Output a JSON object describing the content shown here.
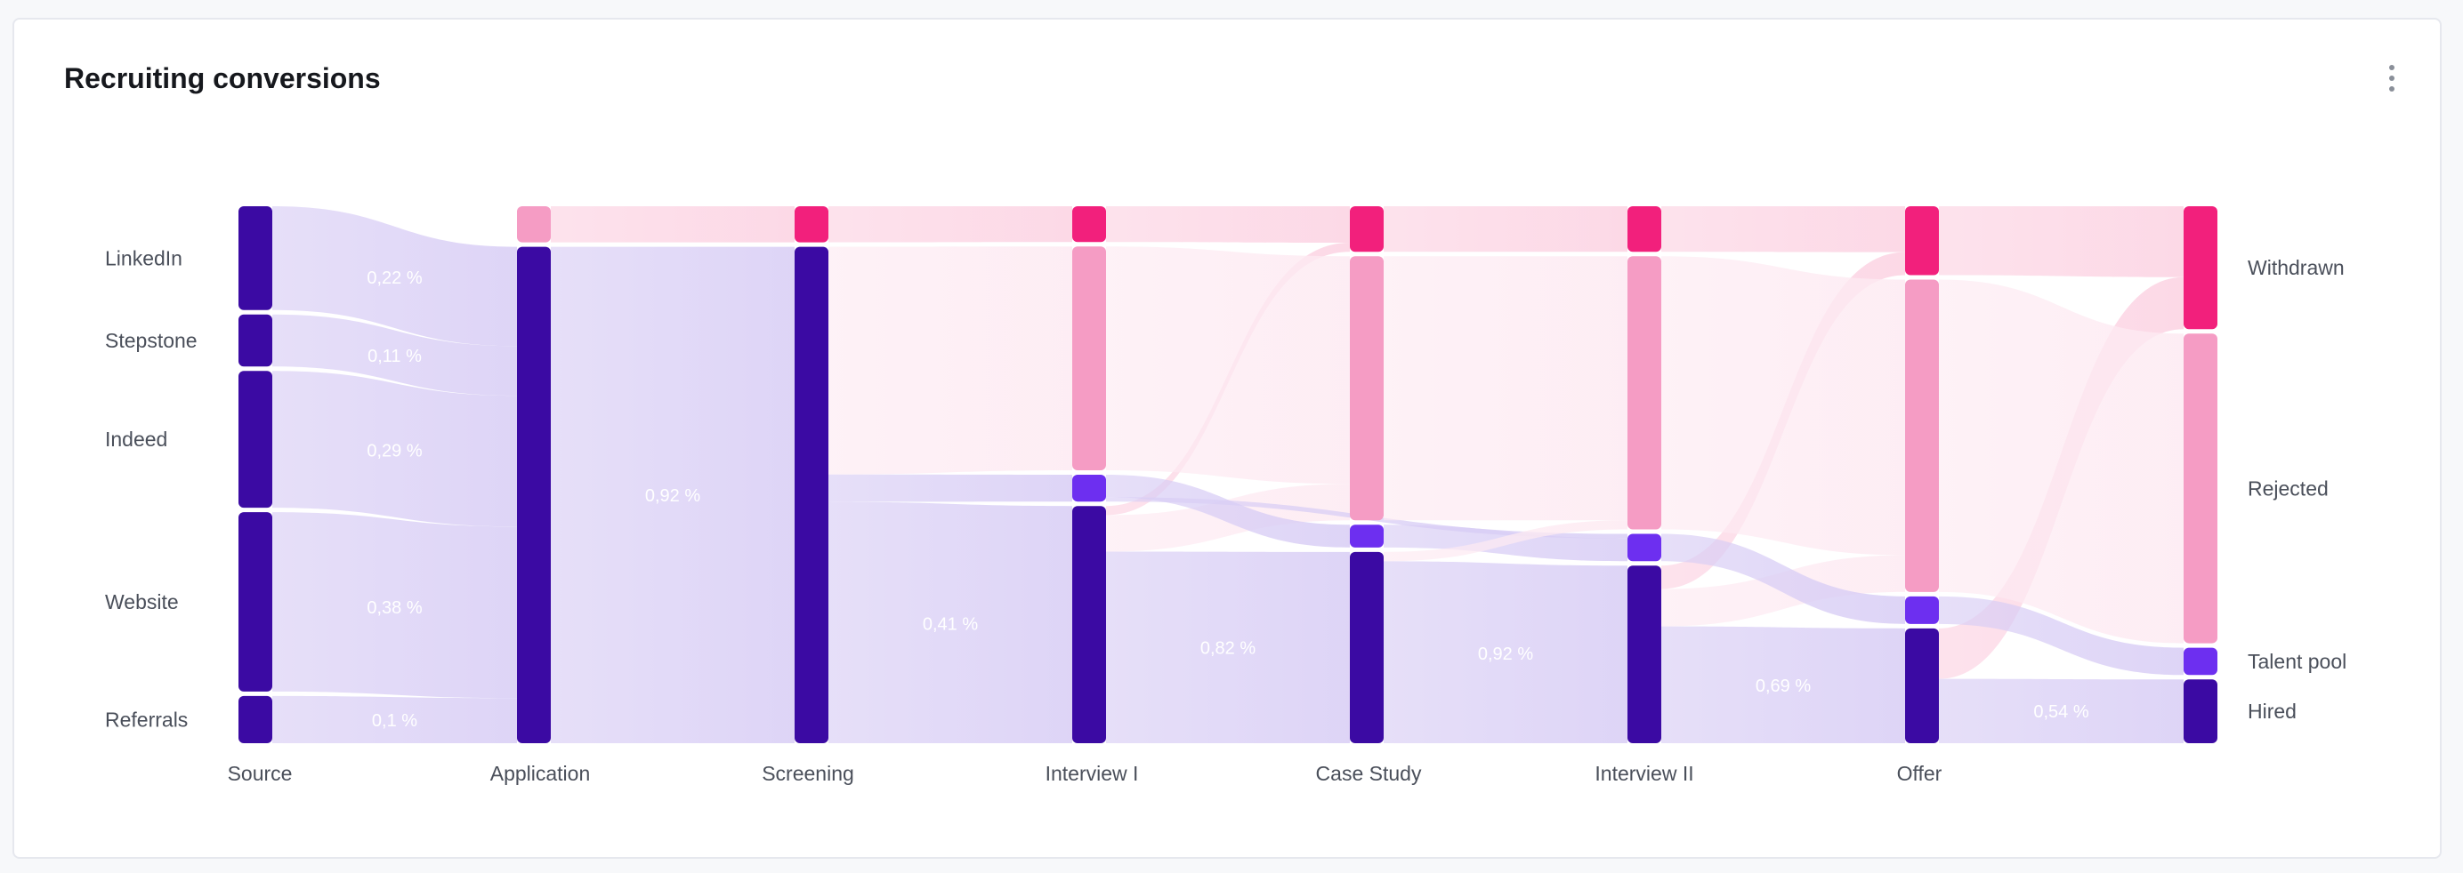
{
  "card": {
    "title": "Recruiting conversions",
    "menu_icon": "more-vertical-icon"
  },
  "colors": {
    "blue_node": "#3b0aa3",
    "violet_node": "#6d2ff0",
    "pink_node": "#f2207c",
    "pink_light_node": "#f59cc4",
    "blue_link": "#d8cdf5",
    "pink_link": "#fcd2e2",
    "rejected_link": "#fdeaf2",
    "link_label": "#ffffff"
  },
  "chart_data": {
    "type": "sankey",
    "title": "Recruiting conversions",
    "stages": [
      "Source",
      "Application",
      "Screening",
      "Interview I",
      "Case Study",
      "Interview II",
      "Offer"
    ],
    "outcome_labels": [
      "Withdrawn",
      "Rejected",
      "Talent pool",
      "Hired"
    ],
    "source_labels": [
      "LinkedIn",
      "Stepstone",
      "Indeed",
      "Website",
      "Referrals"
    ],
    "nodes": [
      {
        "id": "linkedin",
        "col": 0,
        "value": 0.22,
        "kind": "blue",
        "label": "LinkedIn"
      },
      {
        "id": "stepstone",
        "col": 0,
        "value": 0.11,
        "kind": "blue",
        "label": "Stepstone"
      },
      {
        "id": "indeed",
        "col": 0,
        "value": 0.29,
        "kind": "blue",
        "label": "Indeed"
      },
      {
        "id": "website",
        "col": 0,
        "value": 0.38,
        "kind": "blue",
        "label": "Website"
      },
      {
        "id": "referrals",
        "col": 0,
        "value": 0.1,
        "kind": "blue",
        "label": "Referrals"
      },
      {
        "id": "app_withdrawn",
        "col": 1,
        "value": 0.08,
        "kind": "pink_light"
      },
      {
        "id": "app_active",
        "col": 1,
        "value": 1.1,
        "kind": "blue"
      },
      {
        "id": "scr_withdrawn",
        "col": 2,
        "value": 0.08,
        "kind": "pink"
      },
      {
        "id": "scr_active",
        "col": 2,
        "value": 1.1,
        "kind": "blue"
      },
      {
        "id": "i1_withdrawn",
        "col": 3,
        "value": 0.08,
        "kind": "pink"
      },
      {
        "id": "i1_rejected",
        "col": 3,
        "value": 0.5,
        "kind": "pink_light"
      },
      {
        "id": "i1_pool",
        "col": 3,
        "value": 0.06,
        "kind": "violet"
      },
      {
        "id": "i1_active",
        "col": 3,
        "value": 0.53,
        "kind": "blue"
      },
      {
        "id": "cs_withdrawn",
        "col": 4,
        "value": 0.1,
        "kind": "pink"
      },
      {
        "id": "cs_rejected",
        "col": 4,
        "value": 0.58,
        "kind": "pink_light"
      },
      {
        "id": "cs_pool",
        "col": 4,
        "value": 0.05,
        "kind": "violet"
      },
      {
        "id": "cs_active",
        "col": 4,
        "value": 0.42,
        "kind": "blue"
      },
      {
        "id": "i2_withdrawn",
        "col": 5,
        "value": 0.1,
        "kind": "pink"
      },
      {
        "id": "i2_rejected",
        "col": 5,
        "value": 0.6,
        "kind": "pink_light"
      },
      {
        "id": "i2_pool",
        "col": 5,
        "value": 0.06,
        "kind": "violet"
      },
      {
        "id": "i2_active",
        "col": 5,
        "value": 0.39,
        "kind": "blue"
      },
      {
        "id": "of_withdrawn",
        "col": 6,
        "value": 0.15,
        "kind": "pink"
      },
      {
        "id": "of_rejected",
        "col": 6,
        "value": 0.68,
        "kind": "pink_light"
      },
      {
        "id": "of_pool",
        "col": 6,
        "value": 0.06,
        "kind": "violet"
      },
      {
        "id": "of_active",
        "col": 6,
        "value": 0.25,
        "kind": "blue"
      },
      {
        "id": "withdrawn",
        "col": 7,
        "value": 0.27,
        "kind": "pink",
        "label": "Withdrawn"
      },
      {
        "id": "rejected",
        "col": 7,
        "value": 0.68,
        "kind": "pink_light",
        "label": "Rejected"
      },
      {
        "id": "talent_pool",
        "col": 7,
        "value": 0.06,
        "kind": "violet",
        "label": "Talent pool"
      },
      {
        "id": "hired",
        "col": 7,
        "value": 0.14,
        "kind": "blue",
        "label": "Hired"
      }
    ],
    "links": [
      {
        "source": "linkedin",
        "target": "app_active",
        "value": 0.22,
        "label": "0,22 %",
        "color": "blue_link"
      },
      {
        "source": "stepstone",
        "target": "app_active",
        "value": 0.11,
        "label": "0,11 %",
        "color": "blue_link"
      },
      {
        "source": "indeed",
        "target": "app_active",
        "value": 0.29,
        "label": "0,29 %",
        "color": "blue_link"
      },
      {
        "source": "website",
        "target": "app_active",
        "value": 0.38,
        "label": "0,38 %",
        "color": "blue_link"
      },
      {
        "source": "referrals",
        "target": "app_active",
        "value": 0.1,
        "label": "0,1 %",
        "color": "blue_link"
      },
      {
        "source": "app_withdrawn",
        "target": "scr_withdrawn",
        "value": 0.08,
        "color": "pink_link"
      },
      {
        "source": "app_active",
        "target": "scr_active",
        "value": 1.1,
        "label": "0,92 %",
        "color": "blue_link"
      },
      {
        "source": "scr_withdrawn",
        "target": "i1_withdrawn",
        "value": 0.08,
        "color": "pink_link"
      },
      {
        "source": "scr_active",
        "target": "i1_rejected",
        "value": 0.5,
        "color": "rejected_link"
      },
      {
        "source": "scr_active",
        "target": "i1_pool",
        "value": 0.06,
        "color": "blue_link"
      },
      {
        "source": "scr_active",
        "target": "i1_active",
        "value": 0.53,
        "label": "0,41 %",
        "color": "blue_link"
      },
      {
        "source": "i1_withdrawn",
        "target": "cs_withdrawn",
        "value": 0.08,
        "color": "pink_link"
      },
      {
        "source": "i1_active",
        "target": "cs_withdrawn",
        "value": 0.02,
        "color": "pink_link"
      },
      {
        "source": "i1_rejected",
        "target": "cs_rejected",
        "value": 0.5,
        "color": "rejected_link"
      },
      {
        "source": "i1_active",
        "target": "cs_rejected",
        "value": 0.08,
        "color": "rejected_link"
      },
      {
        "source": "i1_pool",
        "target": "cs_pool",
        "value": 0.05,
        "color": "blue_link"
      },
      {
        "source": "i1_pool",
        "target": "i2_pool",
        "value": 0.01,
        "color": "blue_link"
      },
      {
        "source": "i1_active",
        "target": "cs_active",
        "value": 0.42,
        "label": "0,82 %",
        "color": "blue_link"
      },
      {
        "source": "cs_withdrawn",
        "target": "i2_withdrawn",
        "value": 0.1,
        "color": "pink_link"
      },
      {
        "source": "cs_rejected",
        "target": "i2_rejected",
        "value": 0.58,
        "color": "rejected_link"
      },
      {
        "source": "cs_pool",
        "target": "i2_pool",
        "value": 0.05,
        "color": "blue_link"
      },
      {
        "source": "cs_active",
        "target": "i2_rejected",
        "value": 0.02,
        "color": "rejected_link"
      },
      {
        "source": "cs_active",
        "target": "i2_active",
        "value": 0.39,
        "label": "0,92 %",
        "color": "blue_link"
      },
      {
        "source": "i2_withdrawn",
        "target": "of_withdrawn",
        "value": 0.1,
        "color": "pink_link"
      },
      {
        "source": "i2_active",
        "target": "of_withdrawn",
        "value": 0.05,
        "color": "pink_link"
      },
      {
        "source": "i2_rejected",
        "target": "of_rejected",
        "value": 0.6,
        "color": "rejected_link"
      },
      {
        "source": "i2_active",
        "target": "of_rejected",
        "value": 0.08,
        "color": "rejected_link"
      },
      {
        "source": "i2_pool",
        "target": "of_pool",
        "value": 0.06,
        "color": "blue_link"
      },
      {
        "source": "i2_active",
        "target": "of_active",
        "value": 0.25,
        "label": "0,69 %",
        "color": "blue_link"
      },
      {
        "source": "of_withdrawn",
        "target": "withdrawn",
        "value": 0.15,
        "color": "pink_link"
      },
      {
        "source": "of_active",
        "target": "withdrawn",
        "value": 0.11,
        "color": "pink_link"
      },
      {
        "source": "of_rejected",
        "target": "rejected",
        "value": 0.68,
        "color": "rejected_link"
      },
      {
        "source": "of_pool",
        "target": "talent_pool",
        "value": 0.06,
        "color": "blue_link"
      },
      {
        "source": "of_active",
        "target": "hired",
        "value": 0.14,
        "label": "0,54 %",
        "color": "blue_link"
      }
    ]
  }
}
